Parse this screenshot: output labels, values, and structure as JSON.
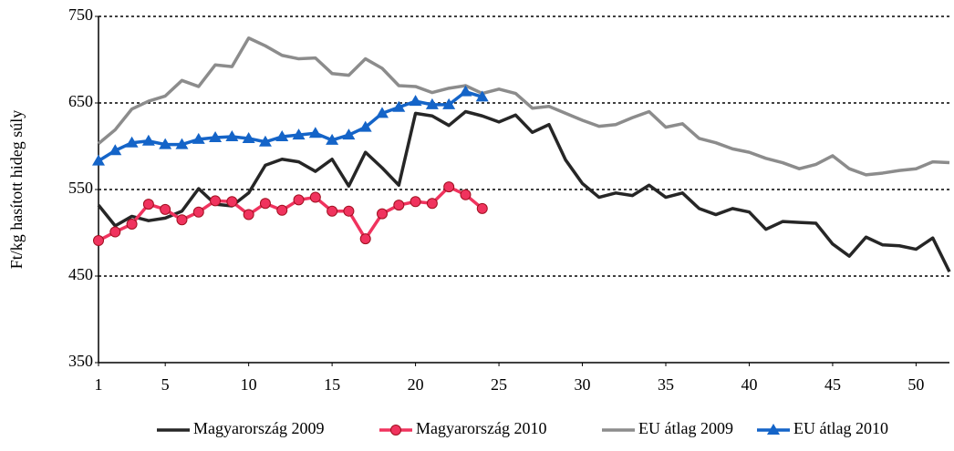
{
  "chart_data": {
    "type": "line",
    "y_label": "Ft/kg hasított hideg súly",
    "x": [
      1,
      2,
      3,
      4,
      5,
      6,
      7,
      8,
      9,
      10,
      11,
      12,
      13,
      14,
      15,
      16,
      17,
      18,
      19,
      20,
      21,
      22,
      23,
      24,
      25,
      26,
      27,
      28,
      29,
      30,
      31,
      32,
      33,
      34,
      35,
      36,
      37,
      38,
      39,
      40,
      41,
      42,
      43,
      44,
      45,
      46,
      47,
      48,
      49,
      50,
      51,
      52
    ],
    "xlim": [
      1,
      52
    ],
    "xticks": [
      1,
      5,
      10,
      15,
      20,
      25,
      30,
      35,
      40,
      45,
      50
    ],
    "ylim": [
      350,
      750
    ],
    "yticks": [
      350,
      450,
      550,
      650,
      750
    ],
    "grid": true,
    "legend": "bottom",
    "series": [
      {
        "name": "Magyarország 2009",
        "color": "#262626",
        "marker": "none",
        "values": [
          532,
          508,
          519,
          514,
          517,
          525,
          551,
          533,
          531,
          546,
          578,
          585,
          582,
          571,
          585,
          554,
          593,
          575,
          555,
          638,
          635,
          624,
          640,
          635,
          628,
          636,
          616,
          625,
          584,
          557,
          541,
          546,
          543,
          555,
          541,
          546,
          528,
          521,
          528,
          524,
          504,
          513,
          512,
          511,
          487,
          473,
          495,
          486,
          485,
          481,
          494,
          455
        ]
      },
      {
        "name": "Magyarország 2010",
        "color": "#f0335e",
        "marker": "circle",
        "values": [
          491,
          501,
          510,
          533,
          527,
          515,
          524,
          537,
          536,
          521,
          534,
          526,
          538,
          541,
          525,
          525,
          493,
          522,
          532,
          536,
          534,
          553,
          544,
          528,
          null,
          null,
          null,
          null,
          null,
          null,
          null,
          null,
          null,
          null,
          null,
          null,
          null,
          null,
          null,
          null,
          null,
          null,
          null,
          null,
          null,
          null,
          null,
          null,
          null,
          null,
          null,
          null
        ]
      },
      {
        "name": "EU átlag 2009",
        "color": "#8c8c8c",
        "marker": "none",
        "values": [
          603,
          619,
          643,
          652,
          658,
          676,
          669,
          694,
          692,
          725,
          716,
          705,
          701,
          702,
          684,
          682,
          701,
          690,
          670,
          669,
          662,
          667,
          670,
          661,
          666,
          661,
          644,
          646,
          638,
          630,
          623,
          625,
          633,
          640,
          622,
          626,
          609,
          604,
          597,
          593,
          586,
          581,
          574,
          579,
          589,
          574,
          567,
          569,
          572,
          574,
          582,
          581
        ]
      },
      {
        "name": "EU átlag 2010",
        "color": "#1464c8",
        "marker": "triangle",
        "values": [
          583,
          595,
          604,
          606,
          602,
          602,
          608,
          610,
          611,
          609,
          605,
          611,
          613,
          615,
          607,
          613,
          622,
          638,
          645,
          652,
          648,
          648,
          663,
          657,
          null,
          null,
          null,
          null,
          null,
          null,
          null,
          null,
          null,
          null,
          null,
          null,
          null,
          null,
          null,
          null,
          null,
          null,
          null,
          null,
          null,
          null,
          null,
          null,
          null,
          null,
          null,
          null
        ]
      }
    ]
  }
}
